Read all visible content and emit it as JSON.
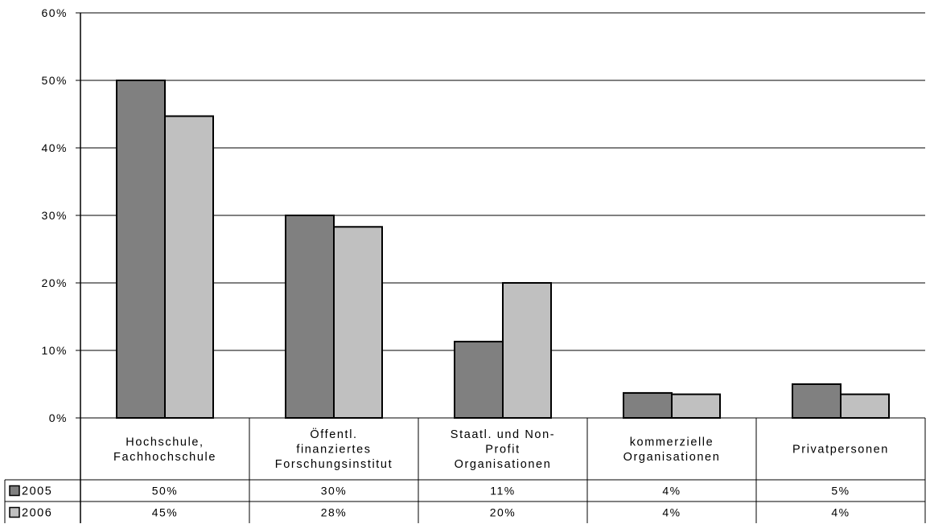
{
  "chart_data": {
    "type": "bar",
    "categories": [
      [
        "Hochschule,",
        "Fachhochschule"
      ],
      [
        "Öffentl.",
        "finanziertes",
        "Forschungsinstitut"
      ],
      [
        "Staatl. und Non-",
        "Profit",
        "Organisationen"
      ],
      [
        "kommerzielle",
        "Organisationen"
      ],
      [
        "Privatpersonen"
      ]
    ],
    "series": [
      {
        "name": "2005",
        "values": [
          50,
          30,
          11.3,
          3.7,
          5.0
        ],
        "labels": [
          "50%",
          "30%",
          "11%",
          "4%",
          "5%"
        ],
        "color": "#808080"
      },
      {
        "name": "2006",
        "values": [
          44.7,
          28.3,
          20.0,
          3.5,
          3.5
        ],
        "labels": [
          "45%",
          "28%",
          "20%",
          "4%",
          "4%"
        ],
        "color": "#c0c0c0"
      }
    ],
    "yticks": [
      "0%",
      "10%",
      "20%",
      "30%",
      "40%",
      "50%",
      "60%"
    ],
    "ylim": [
      0,
      60
    ],
    "grid": true,
    "legend": "data-table-left"
  }
}
